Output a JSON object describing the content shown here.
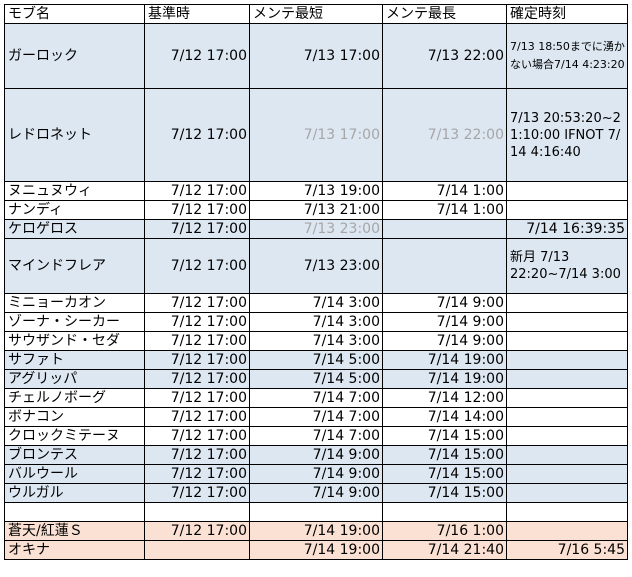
{
  "headers": [
    "モブ名",
    "基準時",
    "メンテ最短",
    "メンテ最長",
    "確定時刻"
  ],
  "rows": [
    {
      "name": "ガーロック",
      "base": "7/12 17:00",
      "min": "7/13 17:00",
      "max": "7/13 22:00",
      "confirm": "7/13 18:50までに湧かない場合7/14 4:23:20"
    },
    {
      "name": "レドロネット",
      "base": "7/12 17:00",
      "min": "7/13 17:00",
      "max": "7/13 22:00",
      "confirm": "7/13 20:53:20~21:10:00 IFNOT 7/14 4:16:40"
    },
    {
      "name": "ヌニュヌウィ",
      "base": "7/12 17:00",
      "min": "7/13 19:00",
      "max": "7/14 1:00",
      "confirm": ""
    },
    {
      "name": "ナンディ",
      "base": "7/12 17:00",
      "min": "7/13 21:00",
      "max": "7/14 1:00",
      "confirm": ""
    },
    {
      "name": "ケロゲロス",
      "base": "7/12 17:00",
      "min": "7/13 23:00",
      "max": "",
      "confirm": "7/14 16:39:35"
    },
    {
      "name": "マインドフレア",
      "base": "7/12 17:00",
      "min": "7/13 23:00",
      "max": "",
      "confirm": "新月 7/13 22:20~7/14 3:00"
    },
    {
      "name": "ミニョーカオン",
      "base": "7/12 17:00",
      "min": "7/14 3:00",
      "max": "7/14 9:00",
      "confirm": ""
    },
    {
      "name": "ゾーナ・シーカー",
      "base": "7/12 17:00",
      "min": "7/14 3:00",
      "max": "7/14 9:00",
      "confirm": ""
    },
    {
      "name": "サウザンド・セダ",
      "base": "7/12 17:00",
      "min": "7/14 3:00",
      "max": "7/14 9:00",
      "confirm": ""
    },
    {
      "name": "サファト",
      "base": "7/12 17:00",
      "min": "7/14 5:00",
      "max": "7/14 19:00",
      "confirm": ""
    },
    {
      "name": "アグリッパ",
      "base": "7/12 17:00",
      "min": "7/14 5:00",
      "max": "7/14 19:00",
      "confirm": ""
    },
    {
      "name": "チェルノボーグ",
      "base": "7/12 17:00",
      "min": "7/14 7:00",
      "max": "7/14 12:00",
      "confirm": ""
    },
    {
      "name": "ボナコン",
      "base": "7/12 17:00",
      "min": "7/14 7:00",
      "max": "7/14 14:00",
      "confirm": ""
    },
    {
      "name": "クロックミテーヌ",
      "base": "7/12 17:00",
      "min": "7/14 7:00",
      "max": "7/14 15:00",
      "confirm": ""
    },
    {
      "name": "ブロンテス",
      "base": "7/12 17:00",
      "min": "7/14 9:00",
      "max": "7/14 15:00",
      "confirm": ""
    },
    {
      "name": "バルウール",
      "base": "7/12 17:00",
      "min": "7/14 9:00",
      "max": "7/14 15:00",
      "confirm": ""
    },
    {
      "name": "ウルガル",
      "base": "7/12 17:00",
      "min": "7/14 9:00",
      "max": "7/14 15:00",
      "confirm": ""
    },
    {
      "name": "",
      "base": "",
      "min": "",
      "max": "",
      "confirm": ""
    },
    {
      "name": "蒼天/紅蓮Ｓ",
      "base": "7/12 17:00",
      "min": "7/14 19:00",
      "max": "7/16 1:00",
      "confirm": ""
    },
    {
      "name": "オキナ",
      "base": "",
      "min": "7/14 19:00",
      "max": "7/14 21:40",
      "confirm": "7/16 5:45"
    }
  ],
  "colors": {
    "blue_row": "#dde7f2",
    "peach_row": "#fbe1d4",
    "gray_text": "#a6a6a6"
  }
}
